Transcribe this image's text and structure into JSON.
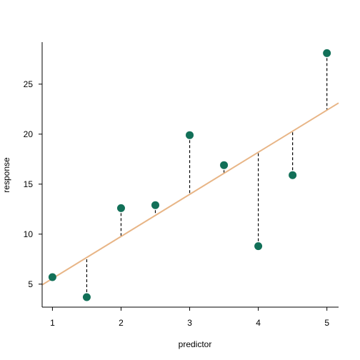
{
  "chart_data": {
    "type": "scatter",
    "title": "",
    "xlabel": "predictor",
    "ylabel": "response",
    "xlim": [
      0.85,
      5.17
    ],
    "ylim": [
      2.7,
      29.2
    ],
    "xticks": [
      1,
      2,
      3,
      4,
      5
    ],
    "yticks": [
      5,
      10,
      15,
      20,
      25
    ],
    "grid": false,
    "legend": "none",
    "points": {
      "x": [
        1,
        1.5,
        2,
        2.5,
        3,
        3.5,
        4,
        4.5,
        5
      ],
      "y": [
        5.7,
        3.7,
        12.6,
        12.9,
        19.9,
        16.9,
        8.8,
        15.9,
        28.1
      ]
    },
    "fit_line": {
      "intercept": 1.35,
      "slope": 4.21
    },
    "residuals": "dashed vertical segments from each point to the fit line",
    "colors": {
      "points": "#127058",
      "fit_line": "#E8B586",
      "residual": "#000000",
      "axes": "#000000"
    }
  }
}
